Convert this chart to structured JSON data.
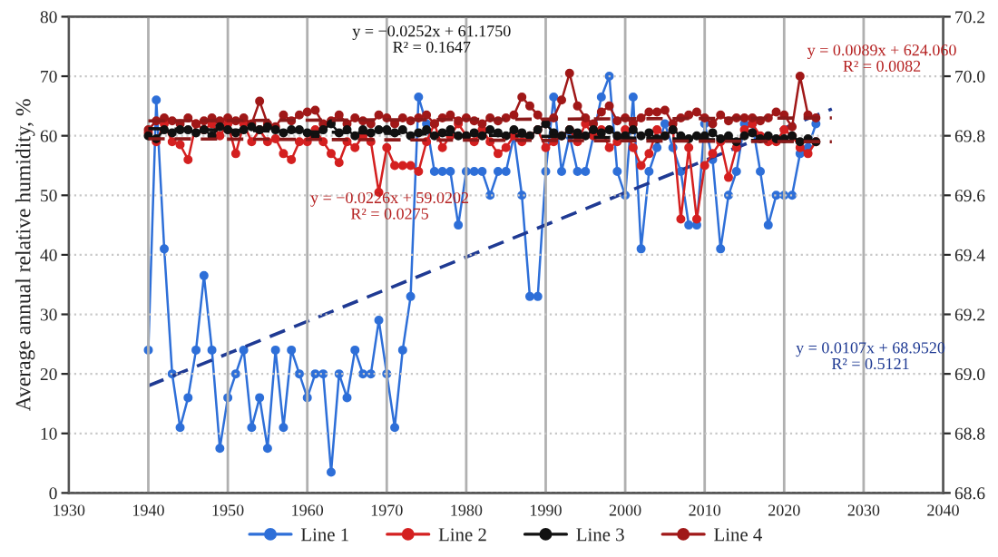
{
  "chart_data": {
    "type": "line",
    "ylabel": "Average annual relative humidity, %",
    "xlim": [
      1930,
      2040
    ],
    "xticks": [
      1930,
      1940,
      1950,
      1960,
      1970,
      1980,
      1990,
      2000,
      2010,
      2020,
      2030,
      2040
    ],
    "ylim": [
      0,
      80
    ],
    "yticks": [
      0,
      10,
      20,
      30,
      40,
      50,
      60,
      70,
      80
    ],
    "y2lim": [
      68.6,
      70.2
    ],
    "y2ticks": [
      {
        "value": 68.6,
        "label": "68.6"
      },
      {
        "value": 68.8,
        "label": "68.8"
      },
      {
        "value": 69.0,
        "label": "69.0"
      },
      {
        "value": 69.2,
        "label": "69.2"
      },
      {
        "value": 69.4,
        "label": "69.4"
      },
      {
        "value": 69.6,
        "label": "69.6"
      },
      {
        "value": 69.8,
        "label": "69.8"
      },
      {
        "value": 70.0,
        "label": "70.0"
      },
      {
        "value": 70.2,
        "label": "70.2"
      }
    ],
    "grid": true,
    "legend": "bottom",
    "marker": "circle",
    "x": [
      1940,
      1941,
      1942,
      1943,
      1944,
      1945,
      1946,
      1947,
      1948,
      1949,
      1950,
      1951,
      1952,
      1953,
      1954,
      1955,
      1956,
      1957,
      1958,
      1959,
      1960,
      1961,
      1962,
      1963,
      1964,
      1965,
      1966,
      1967,
      1968,
      1969,
      1970,
      1971,
      1972,
      1973,
      1974,
      1975,
      1976,
      1977,
      1978,
      1979,
      1980,
      1981,
      1982,
      1983,
      1984,
      1985,
      1986,
      1987,
      1988,
      1989,
      1990,
      1991,
      1992,
      1993,
      1994,
      1995,
      1996,
      1997,
      1998,
      1999,
      2000,
      2001,
      2002,
      2003,
      2004,
      2005,
      2006,
      2007,
      2008,
      2009,
      2010,
      2011,
      2012,
      2013,
      2014,
      2015,
      2016,
      2017,
      2018,
      2019,
      2020,
      2021,
      2022,
      2023,
      2024
    ],
    "series": [
      {
        "name": "Line 1",
        "color": "#2e6fd8",
        "axis": "y2",
        "values": [
          69.08,
          69.92,
          69.42,
          69.0,
          68.82,
          68.92,
          69.08,
          69.33,
          69.08,
          68.75,
          68.92,
          69.0,
          69.08,
          68.82,
          68.92,
          68.75,
          69.08,
          68.82,
          69.08,
          69.0,
          68.92,
          69.0,
          69.0,
          68.67,
          69.0,
          68.92,
          69.08,
          69.0,
          69.0,
          69.18,
          69.0,
          68.82,
          69.08,
          69.26,
          69.93,
          69.84,
          69.68,
          69.68,
          69.68,
          69.5,
          69.68,
          69.68,
          69.68,
          69.6,
          69.68,
          69.68,
          69.8,
          69.6,
          69.26,
          69.26,
          69.68,
          69.93,
          69.68,
          69.8,
          69.68,
          69.68,
          69.8,
          69.93,
          70.0,
          69.68,
          69.6,
          69.93,
          69.42,
          69.68,
          69.76,
          69.84,
          69.76,
          69.68,
          69.5,
          69.5,
          69.84,
          69.72,
          69.42,
          69.6,
          69.68,
          69.84,
          69.84,
          69.68,
          69.5,
          69.6,
          69.6,
          69.6,
          69.74,
          69.76,
          69.84
        ]
      },
      {
        "name": "Line 2",
        "color": "#d42020",
        "values": [
          60.5,
          59,
          62,
          59,
          58.5,
          56,
          62,
          61,
          62,
          60,
          62,
          57,
          62,
          59,
          61,
          59,
          59.5,
          57,
          56,
          59,
          59,
          61,
          59,
          57,
          55.5,
          59,
          58,
          60,
          59,
          50.5,
          58,
          55,
          55,
          55,
          54,
          59,
          62,
          58,
          60,
          62,
          60,
          59,
          61,
          59,
          57,
          58,
          60,
          59,
          60,
          61,
          58,
          59,
          60,
          61,
          59,
          62,
          60,
          61,
          58,
          59,
          61,
          58,
          55,
          57,
          61,
          60,
          61,
          46,
          58,
          46,
          55,
          57,
          59,
          53,
          58,
          61,
          62,
          60,
          59,
          59,
          61,
          60,
          58,
          57,
          59
        ]
      },
      {
        "name": "Line 3",
        "color": "#111111",
        "values": [
          60,
          59.5,
          61,
          60.5,
          61,
          61,
          60.5,
          61,
          60,
          61.5,
          61,
          60.5,
          61,
          61.5,
          61,
          61.5,
          61,
          60.5,
          61,
          61,
          60.5,
          60,
          61,
          62,
          60.5,
          61,
          60,
          61,
          60.5,
          61,
          61,
          60.5,
          61,
          60,
          60.5,
          61,
          60,
          60.5,
          61,
          60,
          60,
          60.5,
          60,
          61,
          60.5,
          60,
          61,
          60.5,
          60,
          61,
          62,
          60.5,
          60,
          61,
          60.5,
          60,
          61,
          60.5,
          61,
          60,
          60,
          61,
          60,
          60.5,
          59.5,
          60,
          61,
          60,
          59.5,
          60,
          60,
          60.5,
          59.5,
          60,
          59,
          60,
          60.5,
          59.5,
          60,
          59.5,
          59.5,
          60,
          59,
          59.5,
          59
        ]
      },
      {
        "name": "Line 4",
        "color": "#a01818",
        "values": [
          61,
          62.5,
          63,
          62.5,
          62,
          63,
          62,
          62.5,
          63,
          62.5,
          63,
          62.5,
          63,
          62,
          65.8,
          62,
          61.5,
          63.5,
          62.5,
          63.5,
          64,
          64.3,
          62,
          62.5,
          63.5,
          62,
          63,
          62.5,
          62,
          63.5,
          63,
          62,
          63,
          62.5,
          63,
          63.5,
          62,
          63,
          63.5,
          62.5,
          63,
          62.5,
          62,
          63,
          62.5,
          63,
          63.5,
          66.5,
          65,
          63.5,
          62,
          63,
          66,
          70.5,
          65,
          63,
          62,
          64,
          65,
          62.5,
          63,
          62,
          63,
          64,
          64,
          64.3,
          62,
          63,
          63.5,
          64,
          63,
          62,
          63.5,
          62.5,
          63,
          63,
          63,
          62.5,
          63,
          64,
          63.5,
          61.5,
          70,
          63.5,
          63
        ]
      },
      {
        "type": "line",
        "color": "#1f3a93",
        "axis": "y2",
        "line_style": "dashed",
        "marker": "none",
        "x": [
          1940,
          2026
        ],
        "values": [
          68.96,
          69.89
        ]
      },
      {
        "type": "line",
        "color": "#111111",
        "line_style": "dashed",
        "marker": "none",
        "x": [
          1940,
          2024
        ],
        "values": [
          61.2,
          59.0
        ]
      },
      {
        "type": "line",
        "color": "#8b1a1a",
        "line_style": "dashed",
        "marker": "none",
        "x": [
          1940,
          2026
        ],
        "values": [
          59.5,
          59.0
        ]
      },
      {
        "type": "line",
        "color": "#8b1a1a",
        "line_style": "dashed",
        "marker": "none",
        "x": [
          1940,
          2026
        ],
        "values": [
          62.5,
          63.0
        ]
      }
    ],
    "annotations": [
      "y = −0.0252x + 61.1750\nR² = 0.1647",
      "y = −0.0226x + 59.0202\nR² = 0.0275",
      "y = 0.0089x + 624.060\nR² = 0.0082",
      "y = 0.0107x + 68.9520\nR² = 0.5121"
    ]
  }
}
